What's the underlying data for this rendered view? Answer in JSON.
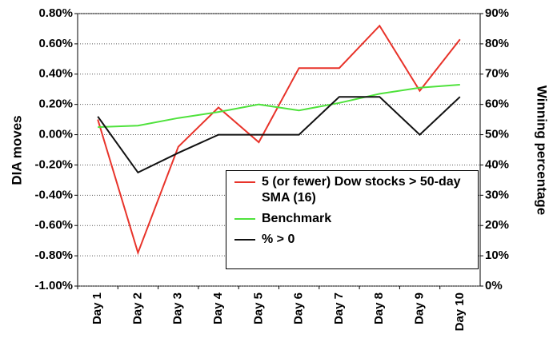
{
  "chart_data": {
    "type": "line",
    "ylabel": "DIA moves",
    "y2label": "Winning percentage",
    "categories": [
      "Day 1",
      "Day 2",
      "Day 3",
      "Day 4",
      "Day 5",
      "Day 6",
      "Day 7",
      "Day 8",
      "Day 9",
      "Day 10"
    ],
    "series": [
      {
        "name": "5 (or fewer) Dow stocks > 50-day SMA (16)",
        "color": "#e8332a",
        "values": [
          0.1,
          -0.78,
          -0.08,
          0.18,
          -0.05,
          0.44,
          0.44,
          0.72,
          0.29,
          0.63
        ]
      },
      {
        "name": "Benchmark",
        "color": "#4fe23c",
        "values": [
          0.05,
          0.06,
          0.11,
          0.15,
          0.2,
          0.16,
          0.21,
          0.27,
          0.31,
          0.33
        ]
      },
      {
        "name": "% > 0",
        "color": "#111111",
        "axis": "y2",
        "values": [
          56,
          37.5,
          44,
          50,
          50,
          50,
          62.5,
          62.5,
          50,
          62.5
        ]
      }
    ],
    "ylim": [
      -1.0,
      0.8
    ],
    "yticks": [
      {
        "value": -1.0,
        "label": "-1.00%"
      },
      {
        "value": -0.8,
        "label": "-0.80%"
      },
      {
        "value": -0.6,
        "label": "-0.60%"
      },
      {
        "value": -0.4,
        "label": "-0.40%"
      },
      {
        "value": -0.2,
        "label": "-0.20%"
      },
      {
        "value": 0,
        "label": "0.00%"
      },
      {
        "value": 0.2,
        "label": "0.20%"
      },
      {
        "value": 0.4,
        "label": "0.40%"
      },
      {
        "value": 0.6,
        "label": "0.60%"
      },
      {
        "value": 0.8,
        "label": "0.80%"
      }
    ],
    "y2lim": [
      0,
      90
    ],
    "y2ticks": [
      {
        "value": 0,
        "label": "0%"
      },
      {
        "value": 10,
        "label": "10%"
      },
      {
        "value": 20,
        "label": "20%"
      },
      {
        "value": 30,
        "label": "30%"
      },
      {
        "value": 40,
        "label": "40%"
      },
      {
        "value": 50,
        "label": "50%"
      },
      {
        "value": 60,
        "label": "60%"
      },
      {
        "value": 70,
        "label": "70%"
      },
      {
        "value": 80,
        "label": "80%"
      },
      {
        "value": 90,
        "label": "90%"
      }
    ],
    "grid": true
  }
}
